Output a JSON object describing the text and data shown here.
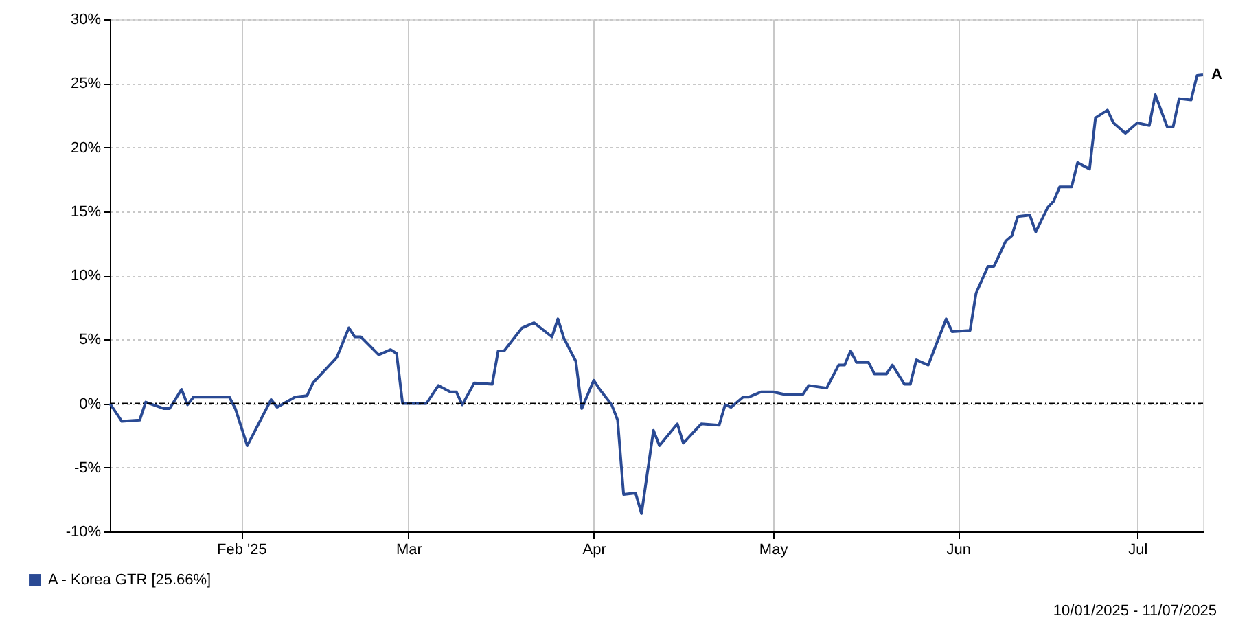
{
  "chart_data": {
    "type": "line",
    "x": [
      "2025-01-10",
      "2025-01-12",
      "2025-01-15",
      "2025-01-16",
      "2025-01-19",
      "2025-01-20",
      "2025-01-22",
      "2025-01-23",
      "2025-01-24",
      "2025-01-30",
      "2025-01-31",
      "2025-02-02",
      "2025-02-06",
      "2025-02-07",
      "2025-02-10",
      "2025-02-12",
      "2025-02-13",
      "2025-02-17",
      "2025-02-19",
      "2025-02-20",
      "2025-02-21",
      "2025-02-24",
      "2025-02-26",
      "2025-02-27",
      "2025-02-28",
      "2025-03-04",
      "2025-03-06",
      "2025-03-08",
      "2025-03-09",
      "2025-03-10",
      "2025-03-12",
      "2025-03-15",
      "2025-03-16",
      "2025-03-17",
      "2025-03-20",
      "2025-03-22",
      "2025-03-25",
      "2025-03-26",
      "2025-03-27",
      "2025-03-29",
      "2025-03-30",
      "2025-04-01",
      "2025-04-02",
      "2025-04-04",
      "2025-04-05",
      "2025-04-06",
      "2025-04-08",
      "2025-04-09",
      "2025-04-11",
      "2025-04-12",
      "2025-04-15",
      "2025-04-16",
      "2025-04-18",
      "2025-04-19",
      "2025-04-22",
      "2025-04-23",
      "2025-04-24",
      "2025-04-26",
      "2025-04-27",
      "2025-04-29",
      "2025-05-01",
      "2025-05-03",
      "2025-05-06",
      "2025-05-07",
      "2025-05-10",
      "2025-05-12",
      "2025-05-13",
      "2025-05-14",
      "2025-05-15",
      "2025-05-17",
      "2025-05-18",
      "2025-05-20",
      "2025-05-21",
      "2025-05-23",
      "2025-05-24",
      "2025-05-25",
      "2025-05-27",
      "2025-05-30",
      "2025-05-31",
      "2025-06-03",
      "2025-06-04",
      "2025-06-06",
      "2025-06-07",
      "2025-06-09",
      "2025-06-10",
      "2025-06-11",
      "2025-06-13",
      "2025-06-14",
      "2025-06-16",
      "2025-06-17",
      "2025-06-18",
      "2025-06-20",
      "2025-06-21",
      "2025-06-23",
      "2025-06-24",
      "2025-06-26",
      "2025-06-27",
      "2025-06-29",
      "2025-07-01",
      "2025-07-03",
      "2025-07-04",
      "2025-07-06",
      "2025-07-07",
      "2025-07-08",
      "2025-07-10",
      "2025-07-11",
      "2025-07-12"
    ],
    "series": [
      {
        "name": "A - Korea GTR [25.66%]",
        "color": "#2a4a94",
        "values": [
          0,
          -1.4,
          -1.3,
          0.1,
          -0.4,
          -0.4,
          1.1,
          -0.1,
          0.5,
          0.5,
          -0.4,
          -3.3,
          0.3,
          -0.3,
          0.5,
          0.6,
          1.6,
          3.6,
          5.9,
          5.2,
          5.2,
          3.8,
          4.2,
          3.9,
          0.0,
          0.0,
          1.4,
          0.9,
          0.9,
          -0.1,
          1.6,
          1.5,
          4.1,
          4.1,
          5.9,
          6.3,
          5.2,
          6.6,
          5.1,
          3.3,
          -0.4,
          1.8,
          1.1,
          -0.1,
          -1.3,
          -7.1,
          -7.0,
          -8.6,
          -2.1,
          -3.3,
          -1.6,
          -3.1,
          -2.1,
          -1.6,
          -1.7,
          -0.1,
          -0.3,
          0.5,
          0.5,
          0.9,
          0.9,
          0.7,
          0.7,
          1.4,
          1.2,
          3.0,
          3.0,
          4.1,
          3.2,
          3.2,
          2.3,
          2.3,
          3.0,
          1.5,
          1.5,
          3.4,
          3.0,
          6.6,
          5.6,
          5.7,
          8.6,
          10.7,
          10.7,
          12.7,
          13.1,
          14.6,
          14.7,
          13.4,
          15.3,
          15.8,
          16.9,
          16.9,
          18.8,
          18.3,
          22.3,
          22.9,
          21.9,
          21.1,
          21.9,
          21.7,
          24.1,
          21.6,
          21.6,
          23.8,
          23.7,
          25.6,
          25.66
        ]
      }
    ],
    "xlim": [
      "2025-01-10",
      "2025-07-12"
    ],
    "xticks": [
      {
        "value": "2025-02-01",
        "label": "Feb '25"
      },
      {
        "value": "2025-03-01",
        "label": "Mar"
      },
      {
        "value": "2025-04-01",
        "label": "Apr"
      },
      {
        "value": "2025-05-01",
        "label": "May"
      },
      {
        "value": "2025-06-01",
        "label": "Jun"
      },
      {
        "value": "2025-07-01",
        "label": "Jul"
      }
    ],
    "ylim": [
      -10,
      30
    ],
    "yticks": [
      {
        "value": -10,
        "label": "-10%"
      },
      {
        "value": -5,
        "label": "-5%"
      },
      {
        "value": 0,
        "label": "0%"
      },
      {
        "value": 5,
        "label": "5%"
      },
      {
        "value": 10,
        "label": "10%"
      },
      {
        "value": 15,
        "label": "15%"
      },
      {
        "value": 20,
        "label": "20%"
      },
      {
        "value": 25,
        "label": "25%"
      },
      {
        "value": 30,
        "label": "30%"
      }
    ],
    "grid": true,
    "legend": "bottom left",
    "marker": "none",
    "line_style": "solid",
    "ref_lines": [
      {
        "axis": "y",
        "value": 0,
        "color": "#000000",
        "line_style": "dotted"
      }
    ],
    "annotations": [
      {
        "text": "A",
        "x": "2025-07-12",
        "y": 25.66
      },
      "10/01/2025 - 11/07/2025"
    ]
  }
}
